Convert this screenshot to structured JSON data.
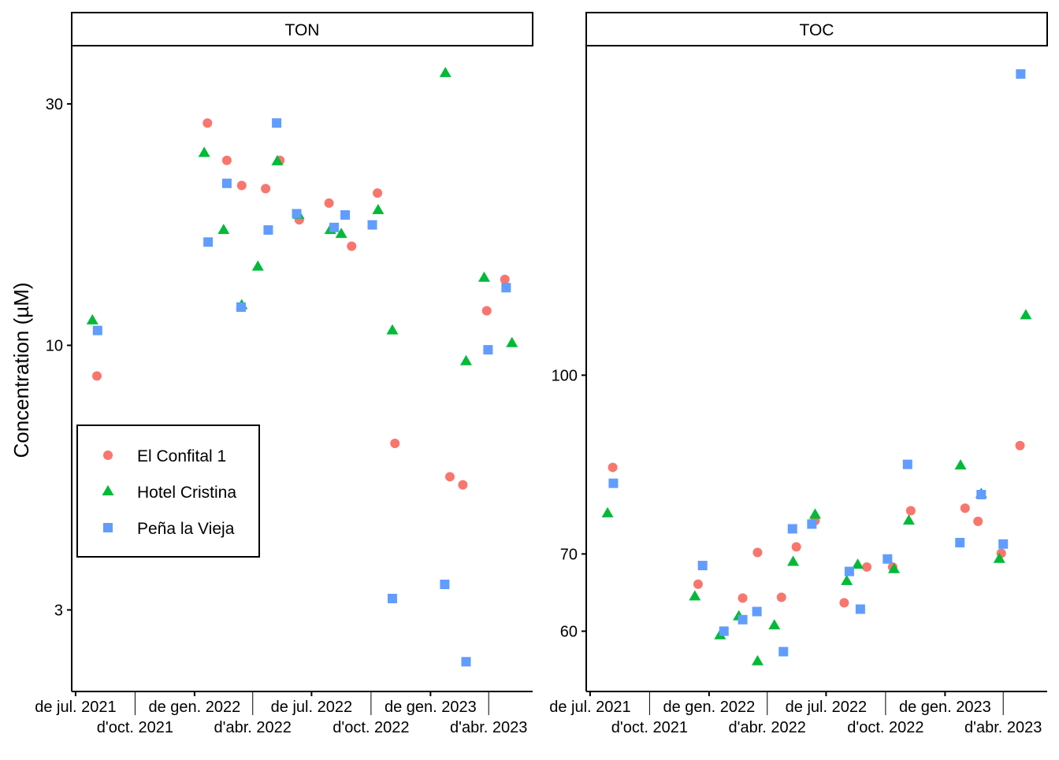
{
  "chart_data": {
    "type": "scatter",
    "ylabel": "Concentration (µM)",
    "xlabel": "",
    "x_tick_labels": [
      "de jul. 2021",
      "d'oct. 2021",
      "de gen. 2022",
      "d'abr. 2022",
      "de jul. 2022",
      "d'oct. 2022",
      "de gen. 2023",
      "d'abr. 2023"
    ],
    "x_ticks": [
      "2021-07-01",
      "2021-10-01",
      "2022-01-01",
      "2022-04-01",
      "2022-07-01",
      "2022-10-01",
      "2023-01-01",
      "2023-04-01"
    ],
    "xlim": [
      "2021-06-25",
      "2023-06-08"
    ],
    "legend": {
      "placement": "left-middle of first panel",
      "entries": [
        "El Confital 1",
        "Hotel Cristina",
        "Peña la Vieja"
      ]
    },
    "series_styles": [
      {
        "name": "El Confital 1",
        "color": "#F8766D",
        "marker": "circle"
      },
      {
        "name": "Hotel Cristina",
        "color": "#00BA38",
        "marker": "triangle"
      },
      {
        "name": "Peña la Vieja",
        "color": "#619CFF",
        "marker": "square"
      }
    ],
    "grid": false,
    "panels": [
      {
        "title": "TON",
        "yscale": "log10",
        "ylim": [
          2.07,
          39.1
        ],
        "y_ticks": [
          3,
          10,
          30
        ],
        "y_tick_labels": [
          "3",
          "10",
          "30"
        ],
        "series": [
          {
            "name": "El Confital 1",
            "points": [
              [
                "2021-08-03",
                8.7
              ],
              [
                "2022-01-21",
                27.5
              ],
              [
                "2022-02-20",
                23.2
              ],
              [
                "2022-03-15",
                20.7
              ],
              [
                "2022-04-21",
                20.4
              ],
              [
                "2022-05-13",
                23.2
              ],
              [
                "2022-06-12",
                17.7
              ],
              [
                "2022-07-28",
                19.1
              ],
              [
                "2022-09-01",
                15.7
              ],
              [
                "2022-10-11",
                20.0
              ],
              [
                "2022-11-07",
                6.4
              ],
              [
                "2023-01-31",
                5.5
              ],
              [
                "2023-02-20",
                5.3
              ],
              [
                "2023-03-29",
                11.7
              ],
              [
                "2023-04-26",
                13.5
              ]
            ]
          },
          {
            "name": "Hotel Cristina",
            "points": [
              [
                "2021-07-27",
                11.2
              ],
              [
                "2022-01-16",
                24.0
              ],
              [
                "2022-02-15",
                16.9
              ],
              [
                "2022-03-15",
                12.0
              ],
              [
                "2022-04-09",
                14.3
              ],
              [
                "2022-05-09",
                23.1
              ],
              [
                "2022-06-11",
                18.1
              ],
              [
                "2022-07-30",
                16.9
              ],
              [
                "2022-08-16",
                16.6
              ],
              [
                "2022-10-12",
                18.5
              ],
              [
                "2022-11-03",
                10.7
              ],
              [
                "2023-01-24",
                34.5
              ],
              [
                "2023-02-25",
                9.3
              ],
              [
                "2023-03-25",
                13.6
              ],
              [
                "2023-05-07",
                10.1
              ]
            ]
          },
          {
            "name": "Peña la Vieja",
            "points": [
              [
                "2021-08-04",
                10.7
              ],
              [
                "2022-01-22",
                16.0
              ],
              [
                "2022-02-20",
                20.9
              ],
              [
                "2022-03-14",
                11.9
              ],
              [
                "2022-04-25",
                16.9
              ],
              [
                "2022-05-08",
                27.5
              ],
              [
                "2022-06-08",
                18.2
              ],
              [
                "2022-08-05",
                17.1
              ],
              [
                "2022-08-22",
                18.1
              ],
              [
                "2022-10-03",
                17.3
              ],
              [
                "2022-11-03",
                3.16
              ],
              [
                "2023-01-23",
                3.37
              ],
              [
                "2023-02-25",
                2.37
              ],
              [
                "2023-03-31",
                9.8
              ],
              [
                "2023-04-28",
                13.0
              ]
            ]
          }
        ]
      },
      {
        "title": "TOC",
        "yscale": "log10",
        "ylim": [
          53.2,
          193
        ],
        "y_ticks": [
          60,
          70,
          100
        ],
        "y_tick_labels": [
          "60",
          "70",
          "100"
        ],
        "series": [
          {
            "name": "El Confital 1",
            "points": [
              [
                "2021-08-05",
                83.2
              ],
              [
                "2021-12-15",
                65.9
              ],
              [
                "2022-02-22",
                64.1
              ],
              [
                "2022-03-17",
                70.2
              ],
              [
                "2022-04-23",
                64.2
              ],
              [
                "2022-05-16",
                71.0
              ],
              [
                "2022-06-14",
                74.8
              ],
              [
                "2022-07-29",
                63.5
              ],
              [
                "2022-09-02",
                68.2
              ],
              [
                "2022-10-12",
                68.2
              ],
              [
                "2022-11-09",
                76.3
              ],
              [
                "2023-02-01",
                76.7
              ],
              [
                "2023-02-21",
                74.7
              ],
              [
                "2023-03-29",
                70.1
              ],
              [
                "2023-04-27",
                86.9
              ]
            ]
          },
          {
            "name": "Hotel Cristina",
            "points": [
              [
                "2021-07-28",
                75.9
              ],
              [
                "2021-12-10",
                64.3
              ],
              [
                "2022-01-18",
                59.5
              ],
              [
                "2022-02-16",
                61.8
              ],
              [
                "2022-03-17",
                56.5
              ],
              [
                "2022-04-12",
                60.7
              ],
              [
                "2022-05-11",
                68.9
              ],
              [
                "2022-06-14",
                75.7
              ],
              [
                "2022-08-02",
                66.3
              ],
              [
                "2022-08-19",
                68.5
              ],
              [
                "2022-10-14",
                67.9
              ],
              [
                "2022-11-06",
                74.8
              ],
              [
                "2023-01-25",
                83.5
              ],
              [
                "2023-02-26",
                78.9
              ],
              [
                "2023-03-26",
                69.3
              ],
              [
                "2023-05-06",
                112.7
              ]
            ]
          },
          {
            "name": "Peña la Vieja",
            "points": [
              [
                "2021-08-06",
                80.6
              ],
              [
                "2021-12-22",
                68.4
              ],
              [
                "2022-01-24",
                60.0
              ],
              [
                "2022-02-22",
                61.4
              ],
              [
                "2022-03-16",
                62.4
              ],
              [
                "2022-04-26",
                57.6
              ],
              [
                "2022-05-10",
                73.6
              ],
              [
                "2022-06-09",
                74.3
              ],
              [
                "2022-08-06",
                67.6
              ],
              [
                "2022-08-23",
                62.7
              ],
              [
                "2022-10-04",
                69.3
              ],
              [
                "2022-11-04",
                83.7
              ],
              [
                "2023-01-24",
                71.6
              ],
              [
                "2023-02-26",
                78.8
              ],
              [
                "2023-04-01",
                71.4
              ],
              [
                "2023-04-28",
                182.4
              ]
            ]
          }
        ]
      }
    ]
  }
}
